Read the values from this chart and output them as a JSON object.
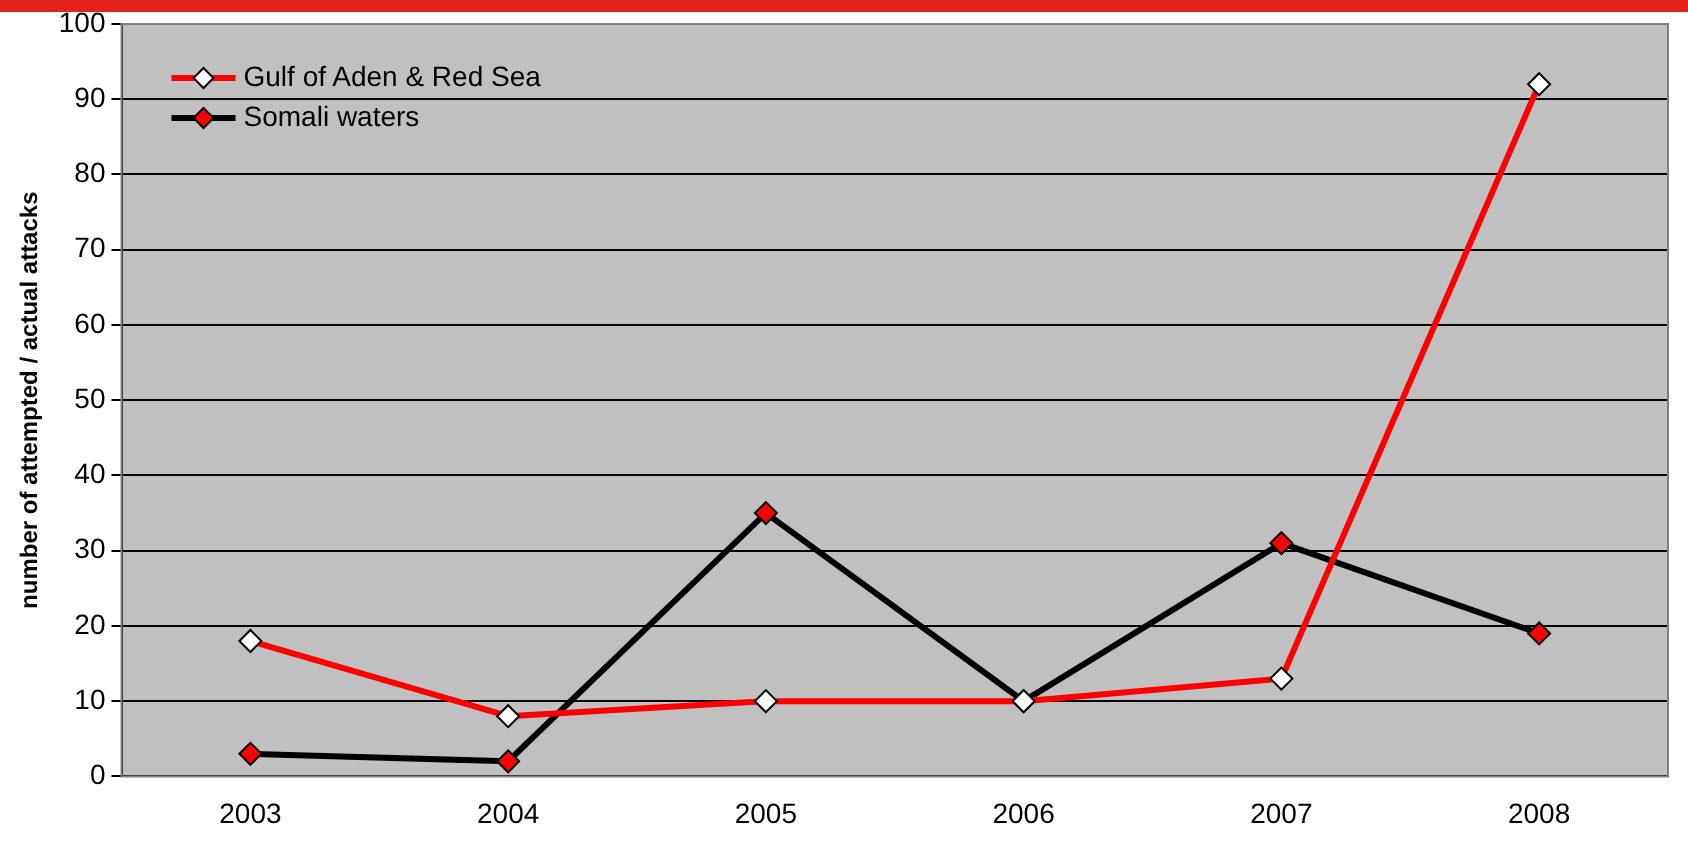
{
  "chart_data": {
    "type": "line",
    "ylabel": "number of attempted / actual attacks",
    "categories": [
      "2003",
      "2004",
      "2005",
      "2006",
      "2007",
      "2008"
    ],
    "series": [
      {
        "name": "Gulf of Aden & Red Sea",
        "color": "#ff0000",
        "values": [
          18,
          8,
          10,
          10,
          13,
          92
        ]
      },
      {
        "name": "Somali waters",
        "color": "#000000",
        "values": [
          3,
          2,
          35,
          10,
          31,
          19
        ]
      }
    ],
    "ylim": [
      0,
      100
    ],
    "yticks": [
      0,
      10,
      20,
      30,
      40,
      50,
      60,
      70,
      80,
      90,
      100
    ],
    "grid": "y",
    "legend": "top left",
    "marker": "diamond",
    "line_style": "solid"
  }
}
